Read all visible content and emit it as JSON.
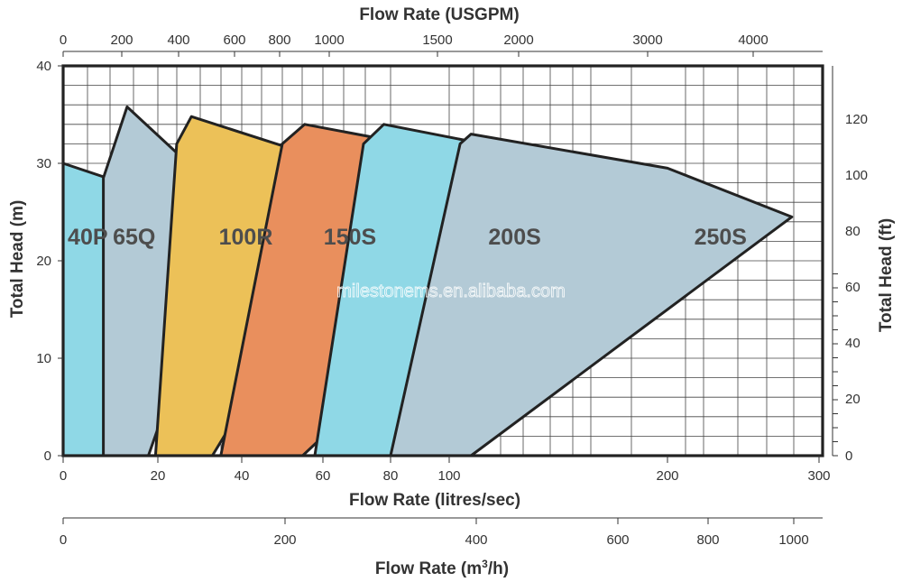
{
  "chart_data": {
    "type": "area",
    "axes": {
      "left": {
        "title": "Total Head (m)",
        "range": [
          0,
          40
        ],
        "ticks": [
          0,
          10,
          20,
          30,
          40
        ]
      },
      "right": {
        "title": "Total Head (ft)",
        "range_ft": [
          0,
          131.2
        ],
        "ticks": [
          0,
          20,
          40,
          60,
          80,
          100,
          120
        ]
      },
      "bottom": {
        "title": "Flow Rate (litres/sec)",
        "ticks": [
          0,
          20,
          40,
          60,
          80,
          100,
          200,
          300
        ]
      },
      "top": {
        "title": "Flow Rate (USGPM)",
        "ticks": [
          0,
          200,
          400,
          600,
          800,
          1000,
          1500,
          2000,
          3000,
          4000
        ]
      },
      "m3h": {
        "title_prefix": "Flow Rate (m",
        "title_sup": "3",
        "title_suffix": "/h)",
        "ticks": [
          0,
          200,
          400,
          600,
          800,
          1000
        ]
      }
    },
    "grid": true,
    "legend": "none",
    "series": [
      {
        "name": "40P",
        "color": "#8fd8e6",
        "x": [
          0,
          10.5,
          18,
          8.5,
          0
        ],
        "y": [
          30,
          28.3,
          25.2,
          0,
          0
        ]
      },
      {
        "name": "65Q",
        "color": "#b3cad6",
        "x": [
          8.5,
          13.5,
          38.5,
          18,
          8.5
        ],
        "y": [
          28.5,
          35.8,
          25.5,
          0,
          0
        ]
      },
      {
        "name": "100R",
        "color": "#ecc158",
        "x": [
          24.5,
          28,
          50,
          75,
          33,
          19.5,
          24.5
        ],
        "y": [
          32,
          34.8,
          31.8,
          27.2,
          0,
          0,
          32
        ]
      },
      {
        "name": "150S",
        "color": "#e98f5d",
        "x": [
          50,
          55.5,
          100,
          156,
          55,
          35,
          50
        ],
        "y": [
          32,
          34,
          31.2,
          26,
          0,
          0,
          32
        ]
      },
      {
        "name": "200S",
        "color": "#8fd8e6",
        "x": [
          72,
          78,
          150,
          212,
          80,
          58,
          72
        ],
        "y": [
          32,
          34,
          30.5,
          25,
          0,
          0,
          32
        ]
      },
      {
        "name": "250S",
        "color": "#b3cad6",
        "x": [
          105,
          110,
          200,
          282,
          110,
          80,
          105
        ],
        "y": [
          32,
          33,
          29.5,
          24.5,
          0,
          0,
          32
        ]
      }
    ],
    "labels": [
      {
        "text": "40P",
        "x": 5.2,
        "y": 22.5
      },
      {
        "text": "65Q",
        "x": 15,
        "y": 22.5
      },
      {
        "text": "100R",
        "x": 41,
        "y": 22.5
      },
      {
        "text": "150S",
        "x": 68,
        "y": 22.5
      },
      {
        "text": "200S",
        "x": 130,
        "y": 22.5
      },
      {
        "text": "250S",
        "x": 235,
        "y": 22.5
      }
    ],
    "watermark": "milestonems.en.alibaba.com"
  }
}
